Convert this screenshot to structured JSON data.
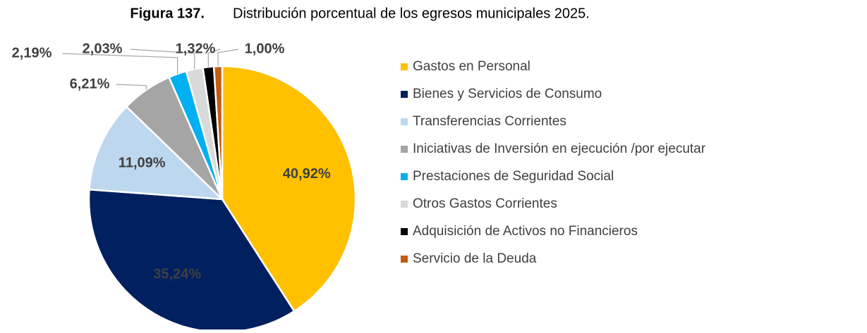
{
  "chart_data": {
    "type": "pie",
    "title_label": "Figura 137.",
    "title": "Distribución porcentual de los egresos municipales 2025.",
    "categories": [
      "Gastos en Personal",
      "Bienes y Servicios de Consumo",
      "Transferencias Corrientes",
      "Iniciativas de Inversión en ejecución /por ejecutar",
      "Prestaciones de Seguridad Social",
      "Otros Gastos Corrientes",
      "Adquisición de Activos no Financieros",
      "Servicio de la Deuda"
    ],
    "values": [
      40.92,
      35.24,
      11.09,
      6.21,
      2.19,
      2.03,
      1.32,
      1.0
    ],
    "value_labels": [
      "40,92%",
      "35,24%",
      "11,09%",
      "6,21%",
      "2,19%",
      "2,03%",
      "1,32%",
      "1,00%"
    ],
    "colors": [
      "#FFC000",
      "#002060",
      "#BDD7EE",
      "#A5A5A5",
      "#00B0F0",
      "#D9D9D9",
      "#000000",
      "#C55A11"
    ],
    "legend": "right"
  }
}
